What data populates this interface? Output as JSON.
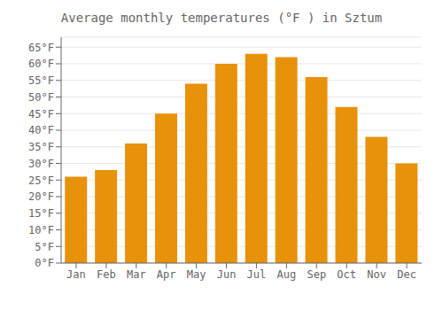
{
  "chart_data": {
    "type": "bar",
    "title": "Average monthly temperatures (°F ) in Sztum",
    "categories": [
      "Jan",
      "Feb",
      "Mar",
      "Apr",
      "May",
      "Jun",
      "Jul",
      "Aug",
      "Sep",
      "Oct",
      "Nov",
      "Dec"
    ],
    "values": [
      26,
      28,
      36,
      45,
      54,
      60,
      63,
      62,
      56,
      47,
      38,
      30
    ],
    "color": "#E8920A",
    "ylim": [
      0,
      68
    ],
    "yticks": [
      {
        "value": 0,
        "label": "0°F"
      },
      {
        "value": 5,
        "label": "5°F"
      },
      {
        "value": 10,
        "label": "10°F"
      },
      {
        "value": 15,
        "label": "15°F"
      },
      {
        "value": 20,
        "label": "20°F"
      },
      {
        "value": 25,
        "label": "25°F"
      },
      {
        "value": 30,
        "label": "30°F"
      },
      {
        "value": 35,
        "label": "35°F"
      },
      {
        "value": 40,
        "label": "40°F"
      },
      {
        "value": 45,
        "label": "45°F"
      },
      {
        "value": 50,
        "label": "50°F"
      },
      {
        "value": 55,
        "label": "55°F"
      },
      {
        "value": 60,
        "label": "60°F"
      },
      {
        "value": 65,
        "label": "65°F"
      }
    ],
    "grid": true
  }
}
